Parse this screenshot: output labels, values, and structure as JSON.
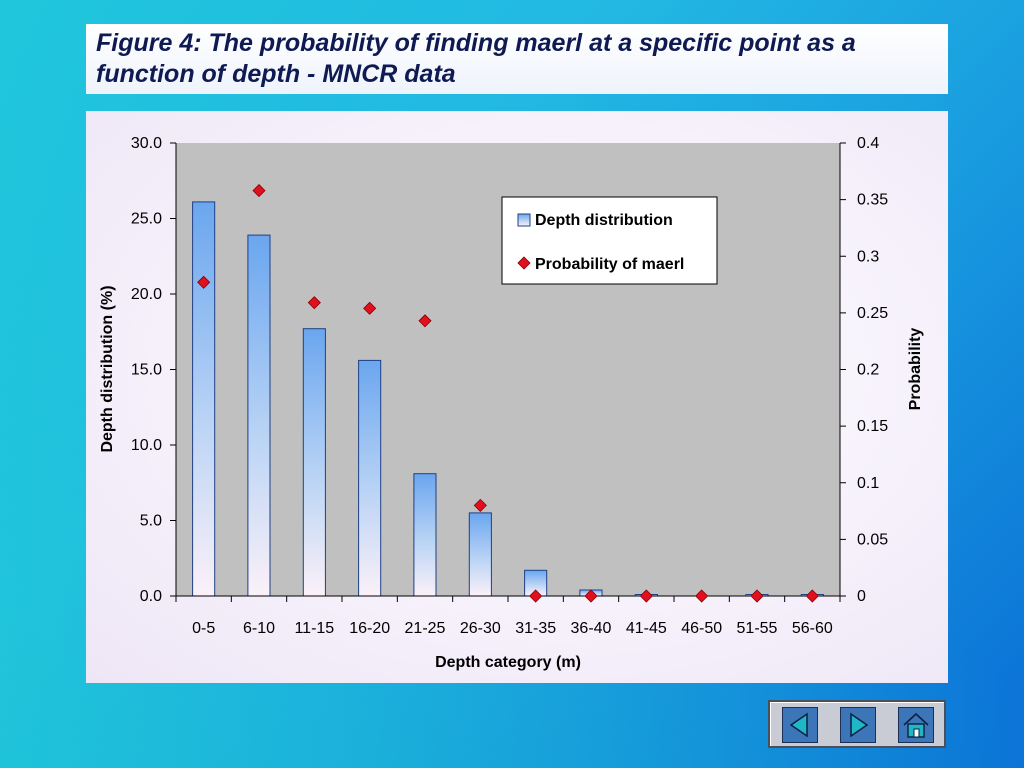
{
  "title": "Figure 4: The probability of finding maerl at a specific point as a function of depth - MNCR data",
  "chart_data": {
    "type": "bar",
    "categories": [
      "0-5",
      "6-10",
      "11-15",
      "16-20",
      "21-25",
      "26-30",
      "31-35",
      "36-40",
      "41-45",
      "46-50",
      "51-55",
      "56-60"
    ],
    "series": [
      {
        "name": "Depth distribution",
        "type": "bar",
        "axis": "left",
        "values": [
          26.1,
          23.9,
          17.7,
          15.6,
          8.1,
          5.5,
          1.7,
          0.4,
          0.1,
          0.0,
          0.1,
          0.1
        ]
      },
      {
        "name": "Probability of maerl",
        "type": "scatter",
        "axis": "right",
        "values": [
          0.277,
          0.358,
          0.259,
          0.254,
          0.243,
          0.08,
          0.0,
          0.0,
          0.0,
          0.0,
          0.0,
          0.0
        ]
      }
    ],
    "xlabel": "Depth category (m)",
    "ylabel": "Depth distribution (%)",
    "y2label": "Probability",
    "ylim": [
      0,
      30
    ],
    "y2lim": [
      0,
      0.4
    ],
    "yticks": [
      "0.0",
      "5.0",
      "10.0",
      "15.0",
      "20.0",
      "25.0",
      "30.0"
    ],
    "y2ticks": [
      "0",
      "0.05",
      "0.1",
      "0.15",
      "0.2",
      "0.25",
      "0.3",
      "0.35",
      "0.4"
    ],
    "legend_position": "top-right",
    "grid": false,
    "colors": {
      "bar_fill_top": "#6aa6ef",
      "bar_fill_bottom": "#fbf1f8",
      "bar_stroke": "#1f3f86",
      "marker": "#e0101e",
      "plot_bg": "#c0c0c0"
    }
  },
  "nav": {
    "prev_icon": "left-arrow-icon",
    "next_icon": "right-arrow-icon",
    "home_icon": "home-icon"
  }
}
